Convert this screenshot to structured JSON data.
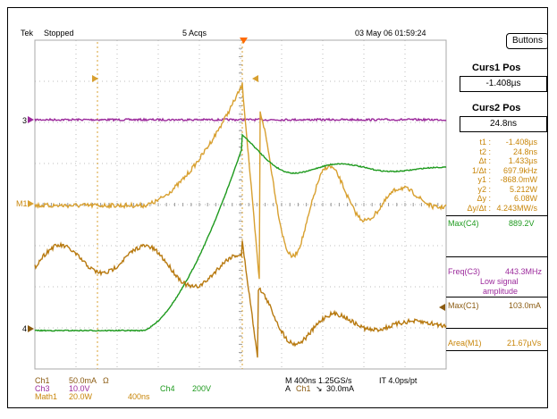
{
  "header": {
    "brand": "Tek",
    "state": "Stopped",
    "acqs": "5 Acqs",
    "datetime": "03 May 06 01:59:24"
  },
  "buttons_label": "Buttons",
  "marker_labels": {
    "ch3": "3",
    "math1": "M1",
    "ch4": "4"
  },
  "cursors": {
    "curs1_title": "Curs1 Pos",
    "curs1_value": "-1.408µs",
    "curs2_title": "Curs2 Pos",
    "curs2_value": "24.8ns",
    "readout": [
      {
        "label": "t1 :",
        "value": "-1.408µs"
      },
      {
        "label": "t2 :",
        "value": "24.8ns"
      },
      {
        "label": "Δt :",
        "value": "1.433µs"
      },
      {
        "label": "1/Δt :",
        "value": "697.9kHz"
      },
      {
        "label": "y1 :",
        "value": "-868.0mW"
      },
      {
        "label": "y2 :",
        "value": "5.212W"
      },
      {
        "label": "Δy :",
        "value": "6.08W"
      },
      {
        "label": "Δy/Δt :",
        "value": "4.243MW/s"
      }
    ]
  },
  "measurements": {
    "max_c4_label": "Max(C4)",
    "max_c4_value": "889.2V",
    "freq_c3_label": "Freq(C3)",
    "freq_c3_value": "443.3MHz",
    "freq_c3_note_1": "Low signal",
    "freq_c3_note_2": "amplitude",
    "max_c1_label": "Max(C1)",
    "max_c1_value": "103.0mA",
    "area_m1_label": "Area(M1)",
    "area_m1_value": "21.67µVs"
  },
  "footer": {
    "ch1": "Ch1",
    "ch1_scale": "50.0mA",
    "ch1_unit": "Ω",
    "ch3": "Ch3",
    "ch3_scale": "10.0V",
    "math1": "Math1",
    "math1_scale": "20.0W",
    "math1_time": "400ns",
    "ch4": "Ch4",
    "ch4_scale": "200V",
    "timebase": "M 400ns 1.25GS/s",
    "record": "IT 4.0ps/pt",
    "trigger_prefix": "A",
    "trigger_ch": "Ch1",
    "trigger_slope": "↘",
    "trigger_level": "30.0mA"
  },
  "colors": {
    "ch1": "#c8860a",
    "ch3": "#9c2a9c",
    "ch4": "#1e9a1e",
    "math": "#d8a030",
    "grid": "#a8a8a8",
    "trigger": "#ff6a00"
  }
}
